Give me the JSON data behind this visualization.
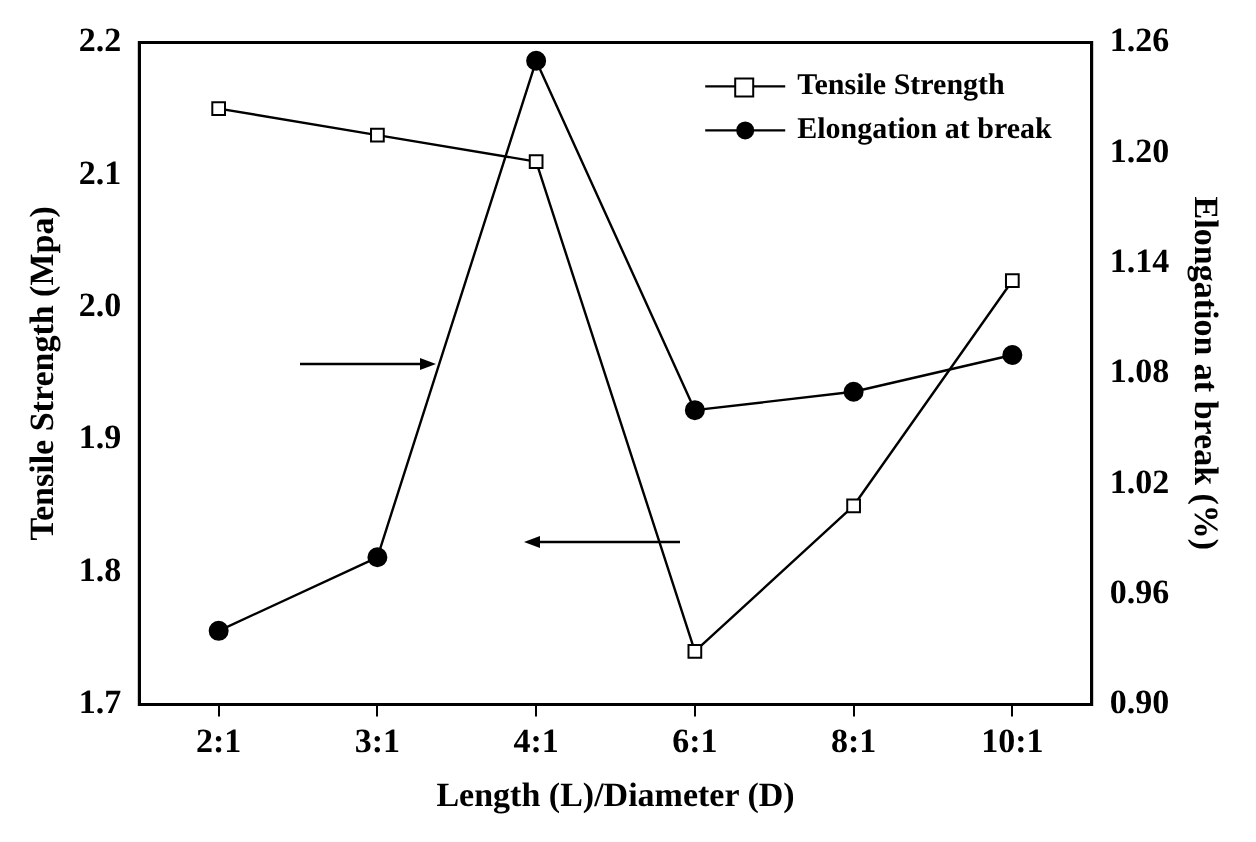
{
  "chart_data": {
    "type": "line",
    "xlabel": "Length (L)/Diameter (D)",
    "ylabel": "Tensile Strength (Mpa)",
    "y2label": "Elongation at break (%)",
    "categories": [
      "2:1",
      "3:1",
      "4:1",
      "6:1",
      "8:1",
      "10:1"
    ],
    "series": [
      {
        "name": "Tensile Strength",
        "color": "#000000",
        "marker": "square",
        "values": [
          2.15,
          2.13,
          2.11,
          1.74,
          1.85,
          2.02
        ]
      },
      {
        "name": "Elongation at break",
        "color": "#000000",
        "marker": "circle",
        "axis": "y2",
        "values": [
          0.94,
          0.98,
          1.25,
          1.06,
          1.07,
          1.09
        ]
      }
    ],
    "ylim": [
      1.7,
      2.2
    ],
    "yticks": [
      1.7,
      1.8,
      1.9,
      {
        "value": 2,
        "label": "2.0"
      },
      2.1,
      2.2
    ],
    "y2lim": [
      0.9,
      1.26
    ],
    "y2ticks": [
      {
        "value": 0.9,
        "label": "0.90"
      },
      0.96,
      1.02,
      1.08,
      1.14,
      {
        "value": 1.2,
        "label": "1.20"
      },
      1.26
    ],
    "grid": false,
    "legend": "top right",
    "line_style": "solid"
  }
}
